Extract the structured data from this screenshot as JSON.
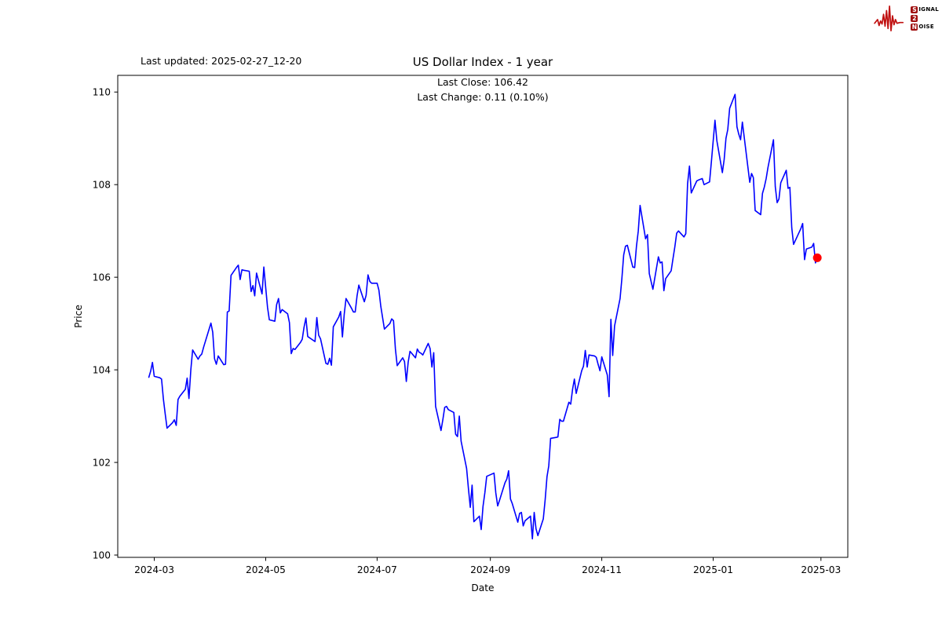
{
  "figure": {
    "last_updated": "Last updated: 2025-02-27_12-20"
  },
  "logo": {
    "waveform_color": "#c01010",
    "badge_color": "#a01010",
    "rows": [
      {
        "initial": "S",
        "rest": "IGNAL"
      },
      {
        "initial": "2",
        "rest": ""
      },
      {
        "initial": "N",
        "rest": "OISE"
      }
    ]
  },
  "chart_data": {
    "type": "line",
    "title": "US Dollar Index - 1 year",
    "subtitle_lines": [
      "Last Close: 106.42",
      "Last Change: 0.11 (0.10%)"
    ],
    "xlabel": "Date",
    "ylabel": "Price",
    "grid": false,
    "legend": false,
    "x_unit": "days since 2024-02-27",
    "x_domain": [
      -17,
      382.7
    ],
    "ylim": [
      99.95,
      110.36
    ],
    "x_ticks": [
      {
        "label": "2024-03",
        "t": 3
      },
      {
        "label": "2024-05",
        "t": 64
      },
      {
        "label": "2024-07",
        "t": 125
      },
      {
        "label": "2024-09",
        "t": 187
      },
      {
        "label": "2024-11",
        "t": 248
      },
      {
        "label": "2025-01",
        "t": 309
      },
      {
        "label": "2025-03",
        "t": 368
      }
    ],
    "y_ticks": [
      100,
      102,
      104,
      106,
      108,
      110
    ],
    "last_close": 106.42,
    "last_change": "0.11 (0.10%)",
    "last_point": {
      "t": 366,
      "value": 106.42,
      "marker_color": "#ff0000"
    },
    "series": [
      {
        "name": "US Dollar Index",
        "color": "#0000ff",
        "points": [
          [
            0,
            103.84
          ],
          [
            1,
            103.97
          ],
          [
            2,
            104.16
          ],
          [
            3,
            103.86
          ],
          [
            6,
            103.83
          ],
          [
            7,
            103.8
          ],
          [
            8,
            103.36
          ],
          [
            9,
            103.04
          ],
          [
            10,
            102.74
          ],
          [
            13,
            102.86
          ],
          [
            14,
            102.92
          ],
          [
            15,
            102.8
          ],
          [
            16,
            103.36
          ],
          [
            17,
            103.43
          ],
          [
            20,
            103.58
          ],
          [
            21,
            103.82
          ],
          [
            22,
            103.38
          ],
          [
            23,
            104.0
          ],
          [
            24,
            104.43
          ],
          [
            27,
            104.23
          ],
          [
            28,
            104.3
          ],
          [
            29,
            104.34
          ],
          [
            30,
            104.49
          ],
          [
            34,
            105.01
          ],
          [
            35,
            104.81
          ],
          [
            36,
            104.24
          ],
          [
            37,
            104.12
          ],
          [
            38,
            104.3
          ],
          [
            41,
            104.11
          ],
          [
            42,
            104.12
          ],
          [
            43,
            105.25
          ],
          [
            44,
            105.27
          ],
          [
            45,
            106.04
          ],
          [
            48,
            106.21
          ],
          [
            49,
            106.26
          ],
          [
            50,
            105.95
          ],
          [
            51,
            106.16
          ],
          [
            52,
            106.15
          ],
          [
            55,
            106.13
          ],
          [
            56,
            105.69
          ],
          [
            57,
            105.82
          ],
          [
            58,
            105.6
          ],
          [
            59,
            106.09
          ],
          [
            62,
            105.64
          ],
          [
            63,
            106.22
          ],
          [
            64,
            105.77
          ],
          [
            65,
            105.35
          ],
          [
            66,
            105.08
          ],
          [
            69,
            105.05
          ],
          [
            70,
            105.41
          ],
          [
            71,
            105.54
          ],
          [
            72,
            105.23
          ],
          [
            73,
            105.3
          ],
          [
            76,
            105.21
          ],
          [
            77,
            105.02
          ],
          [
            78,
            104.35
          ],
          [
            79,
            104.46
          ],
          [
            80,
            104.44
          ],
          [
            83,
            104.59
          ],
          [
            84,
            104.66
          ],
          [
            85,
            104.92
          ],
          [
            86,
            105.12
          ],
          [
            87,
            104.72
          ],
          [
            91,
            104.61
          ],
          [
            92,
            105.13
          ],
          [
            93,
            104.75
          ],
          [
            94,
            104.67
          ],
          [
            97,
            104.14
          ],
          [
            98,
            104.12
          ],
          [
            99,
            104.25
          ],
          [
            100,
            104.1
          ],
          [
            101,
            104.93
          ],
          [
            104,
            105.14
          ],
          [
            105,
            105.26
          ],
          [
            106,
            104.71
          ],
          [
            107,
            105.2
          ],
          [
            108,
            105.54
          ],
          [
            111,
            105.33
          ],
          [
            112,
            105.25
          ],
          [
            113,
            105.25
          ],
          [
            114,
            105.59
          ],
          [
            115,
            105.83
          ],
          [
            118,
            105.47
          ],
          [
            119,
            105.61
          ],
          [
            120,
            106.05
          ],
          [
            121,
            105.91
          ],
          [
            122,
            105.87
          ],
          [
            125,
            105.87
          ],
          [
            126,
            105.72
          ],
          [
            127,
            105.37
          ],
          [
            129,
            104.88
          ],
          [
            132,
            105.0
          ],
          [
            133,
            105.1
          ],
          [
            134,
            105.06
          ],
          [
            135,
            104.45
          ],
          [
            136,
            104.09
          ],
          [
            139,
            104.26
          ],
          [
            140,
            104.18
          ],
          [
            141,
            103.75
          ],
          [
            142,
            104.17
          ],
          [
            143,
            104.4
          ],
          [
            146,
            104.26
          ],
          [
            147,
            104.45
          ],
          [
            148,
            104.38
          ],
          [
            149,
            104.36
          ],
          [
            150,
            104.32
          ],
          [
            153,
            104.57
          ],
          [
            154,
            104.46
          ],
          [
            155,
            104.06
          ],
          [
            156,
            104.37
          ],
          [
            157,
            103.21
          ],
          [
            160,
            102.69
          ],
          [
            161,
            102.93
          ],
          [
            162,
            103.19
          ],
          [
            163,
            103.21
          ],
          [
            164,
            103.14
          ],
          [
            167,
            103.08
          ],
          [
            168,
            102.61
          ],
          [
            169,
            102.56
          ],
          [
            170,
            103.0
          ],
          [
            171,
            102.46
          ],
          [
            174,
            101.87
          ],
          [
            175,
            101.44
          ],
          [
            176,
            101.03
          ],
          [
            177,
            101.51
          ],
          [
            178,
            100.72
          ],
          [
            181,
            100.84
          ],
          [
            182,
            100.55
          ],
          [
            183,
            101.05
          ],
          [
            184,
            101.35
          ],
          [
            185,
            101.7
          ],
          [
            189,
            101.77
          ],
          [
            190,
            101.34
          ],
          [
            191,
            101.06
          ],
          [
            192,
            101.18
          ],
          [
            195,
            101.56
          ],
          [
            196,
            101.64
          ],
          [
            197,
            101.82
          ],
          [
            198,
            101.21
          ],
          [
            199,
            101.11
          ],
          [
            202,
            100.71
          ],
          [
            203,
            100.9
          ],
          [
            204,
            100.92
          ],
          [
            205,
            100.63
          ],
          [
            206,
            100.74
          ],
          [
            209,
            100.84
          ],
          [
            210,
            100.35
          ],
          [
            211,
            100.92
          ],
          [
            212,
            100.57
          ],
          [
            213,
            100.42
          ],
          [
            216,
            100.78
          ],
          [
            217,
            101.2
          ],
          [
            218,
            101.69
          ],
          [
            219,
            101.93
          ],
          [
            220,
            102.52
          ],
          [
            223,
            102.54
          ],
          [
            224,
            102.55
          ],
          [
            225,
            102.93
          ],
          [
            226,
            102.89
          ],
          [
            227,
            102.89
          ],
          [
            230,
            103.3
          ],
          [
            231,
            103.26
          ],
          [
            232,
            103.58
          ],
          [
            233,
            103.8
          ],
          [
            234,
            103.49
          ],
          [
            237,
            103.98
          ],
          [
            238,
            104.08
          ],
          [
            239,
            104.42
          ],
          [
            240,
            104.06
          ],
          [
            241,
            104.32
          ],
          [
            244,
            104.3
          ],
          [
            245,
            104.27
          ],
          [
            246,
            104.12
          ],
          [
            247,
            103.98
          ],
          [
            248,
            104.28
          ],
          [
            251,
            103.89
          ],
          [
            252,
            103.42
          ],
          [
            253,
            105.09
          ],
          [
            254,
            104.31
          ],
          [
            255,
            104.95
          ],
          [
            258,
            105.54
          ],
          [
            259,
            105.97
          ],
          [
            260,
            106.48
          ],
          [
            261,
            106.67
          ],
          [
            262,
            106.69
          ],
          [
            265,
            106.22
          ],
          [
            266,
            106.21
          ],
          [
            267,
            106.67
          ],
          [
            268,
            107.0
          ],
          [
            269,
            107.55
          ],
          [
            272,
            106.83
          ],
          [
            273,
            106.92
          ],
          [
            274,
            106.08
          ],
          [
            276,
            105.74
          ],
          [
            279,
            106.44
          ],
          [
            280,
            106.31
          ],
          [
            281,
            106.33
          ],
          [
            282,
            105.71
          ],
          [
            283,
            105.97
          ],
          [
            286,
            106.14
          ],
          [
            287,
            106.4
          ],
          [
            288,
            106.66
          ],
          [
            289,
            106.95
          ],
          [
            290,
            107.0
          ],
          [
            293,
            106.87
          ],
          [
            294,
            106.94
          ],
          [
            295,
            108.02
          ],
          [
            296,
            108.4
          ],
          [
            297,
            107.82
          ],
          [
            300,
            108.08
          ],
          [
            301,
            108.1
          ],
          [
            303,
            108.13
          ],
          [
            304,
            108.0
          ],
          [
            307,
            108.06
          ],
          [
            308,
            108.49
          ],
          [
            310,
            109.39
          ],
          [
            311,
            108.95
          ],
          [
            314,
            108.26
          ],
          [
            315,
            108.54
          ],
          [
            316,
            109.0
          ],
          [
            317,
            109.19
          ],
          [
            318,
            109.65
          ],
          [
            321,
            109.95
          ],
          [
            322,
            109.25
          ],
          [
            323,
            109.09
          ],
          [
            324,
            108.97
          ],
          [
            325,
            109.35
          ],
          [
            329,
            108.05
          ],
          [
            330,
            108.24
          ],
          [
            331,
            108.15
          ],
          [
            332,
            107.44
          ],
          [
            335,
            107.35
          ],
          [
            336,
            107.81
          ],
          [
            337,
            107.95
          ],
          [
            338,
            108.13
          ],
          [
            339,
            108.37
          ],
          [
            342,
            108.97
          ],
          [
            343,
            107.96
          ],
          [
            344,
            107.61
          ],
          [
            345,
            107.69
          ],
          [
            346,
            108.04
          ],
          [
            349,
            108.31
          ],
          [
            350,
            107.92
          ],
          [
            351,
            107.94
          ],
          [
            352,
            107.07
          ],
          [
            353,
            106.71
          ],
          [
            357,
            107.05
          ],
          [
            358,
            107.16
          ],
          [
            359,
            106.38
          ],
          [
            360,
            106.61
          ],
          [
            363,
            106.65
          ],
          [
            364,
            106.73
          ],
          [
            365,
            106.31
          ],
          [
            366,
            106.42
          ]
        ]
      }
    ]
  }
}
